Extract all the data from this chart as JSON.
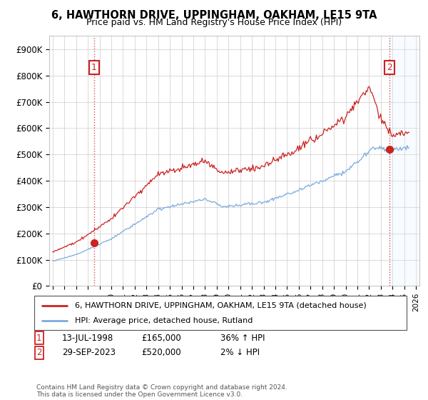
{
  "title": "6, HAWTHORN DRIVE, UPPINGHAM, OAKHAM, LE15 9TA",
  "subtitle": "Price paid vs. HM Land Registry's House Price Index (HPI)",
  "legend_line1": "6, HAWTHORN DRIVE, UPPINGHAM, OAKHAM, LE15 9TA (detached house)",
  "legend_line2": "HPI: Average price, detached house, Rutland",
  "annotation1_date": "13-JUL-1998",
  "annotation1_price": "£165,000",
  "annotation1_hpi": "36% ↑ HPI",
  "annotation2_date": "29-SEP-2023",
  "annotation2_price": "£520,000",
  "annotation2_hpi": "2% ↓ HPI",
  "footnote": "Contains HM Land Registry data © Crown copyright and database right 2024.\nThis data is licensed under the Open Government Licence v3.0.",
  "hpi_color": "#7aabdc",
  "price_color": "#cc2222",
  "annotation_color": "#cc2222",
  "shade_color": "#ddeeff",
  "ylim": [
    0,
    950000
  ],
  "yticks": [
    0,
    100000,
    200000,
    300000,
    400000,
    500000,
    600000,
    700000,
    800000,
    900000
  ],
  "ytick_labels": [
    "£0",
    "£100K",
    "£200K",
    "£300K",
    "£400K",
    "£500K",
    "£600K",
    "£700K",
    "£800K",
    "£900K"
  ],
  "sale1_x": 1998.54,
  "sale1_y": 165000,
  "sale2_x": 2023.75,
  "sale2_y": 520000,
  "xmin": 1994.7,
  "xmax": 2026.3
}
